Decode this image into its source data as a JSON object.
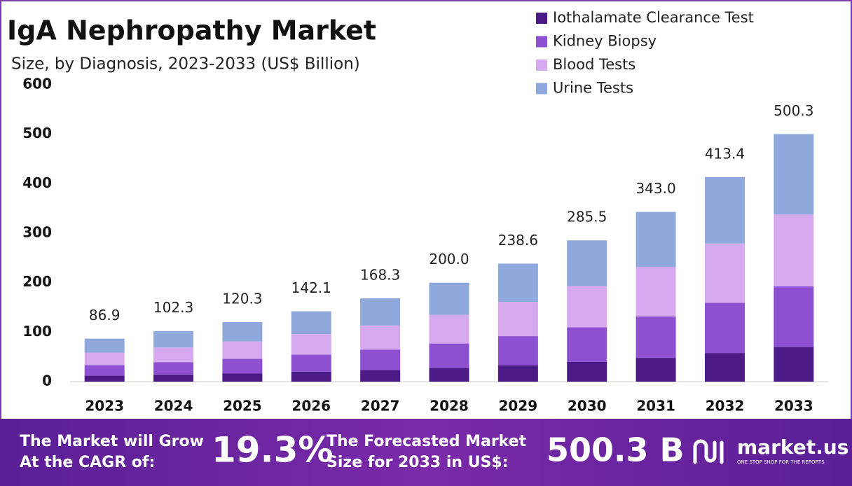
{
  "chart_data": {
    "type": "stacked_bar",
    "title": "IgA Nephropathy Market",
    "subtitle": "Size, by Diagnosis, 2023-2033 (US$ Billion)",
    "categories": [
      "2023",
      "2024",
      "2025",
      "2026",
      "2027",
      "2028",
      "2029",
      "2030",
      "2031",
      "2032",
      "2033"
    ],
    "series": [
      {
        "name": "Iothalamate Clearance Test",
        "color": "#4b1a86",
        "values": [
          12.2,
          14.3,
          16.8,
          19.9,
          23.6,
          28.0,
          33.4,
          40.0,
          48.0,
          57.9,
          70.0
        ]
      },
      {
        "name": "Kidney Biopsy",
        "color": "#8c50d0",
        "values": [
          21.3,
          25.1,
          29.5,
          34.8,
          41.2,
          49.0,
          58.5,
          69.9,
          84.0,
          101.3,
          122.6
        ]
      },
      {
        "name": "Blood Tests",
        "color": "#d6a9ef",
        "values": [
          25.2,
          29.7,
          34.9,
          41.2,
          48.8,
          58.0,
          69.2,
          82.8,
          99.5,
          119.9,
          145.1
        ]
      },
      {
        "name": "Urine Tests",
        "color": "#8fa9dc",
        "values": [
          28.2,
          33.2,
          39.1,
          46.2,
          54.7,
          65.0,
          77.5,
          92.8,
          111.5,
          134.3,
          162.6
        ]
      }
    ],
    "totals": [
      86.9,
      102.3,
      120.3,
      142.1,
      168.3,
      200.0,
      238.6,
      285.5,
      343.0,
      413.4,
      500.3
    ],
    "total_labels": [
      "86.9",
      "102.3",
      "120.3",
      "142.1",
      "168.3",
      "200.0",
      "238.6",
      "285.5",
      "343.0",
      "413.4",
      "500.3"
    ],
    "ylim": [
      0,
      600
    ],
    "yticks": [
      0,
      100,
      200,
      300,
      400,
      500,
      600
    ],
    "grid": false,
    "legend": "top-right"
  },
  "footer": {
    "cagr_text_1": "The Market will Grow",
    "cagr_text_2": "At the CAGR of:",
    "cagr": "19.3%",
    "forecast_text_1": "The Forecasted Market",
    "forecast_text_2": "Size for 2033 in US$:",
    "forecast": "500.3 B",
    "brand": "market.us",
    "tagline": "ONE STOP SHOP FOR THE REPORTS"
  }
}
